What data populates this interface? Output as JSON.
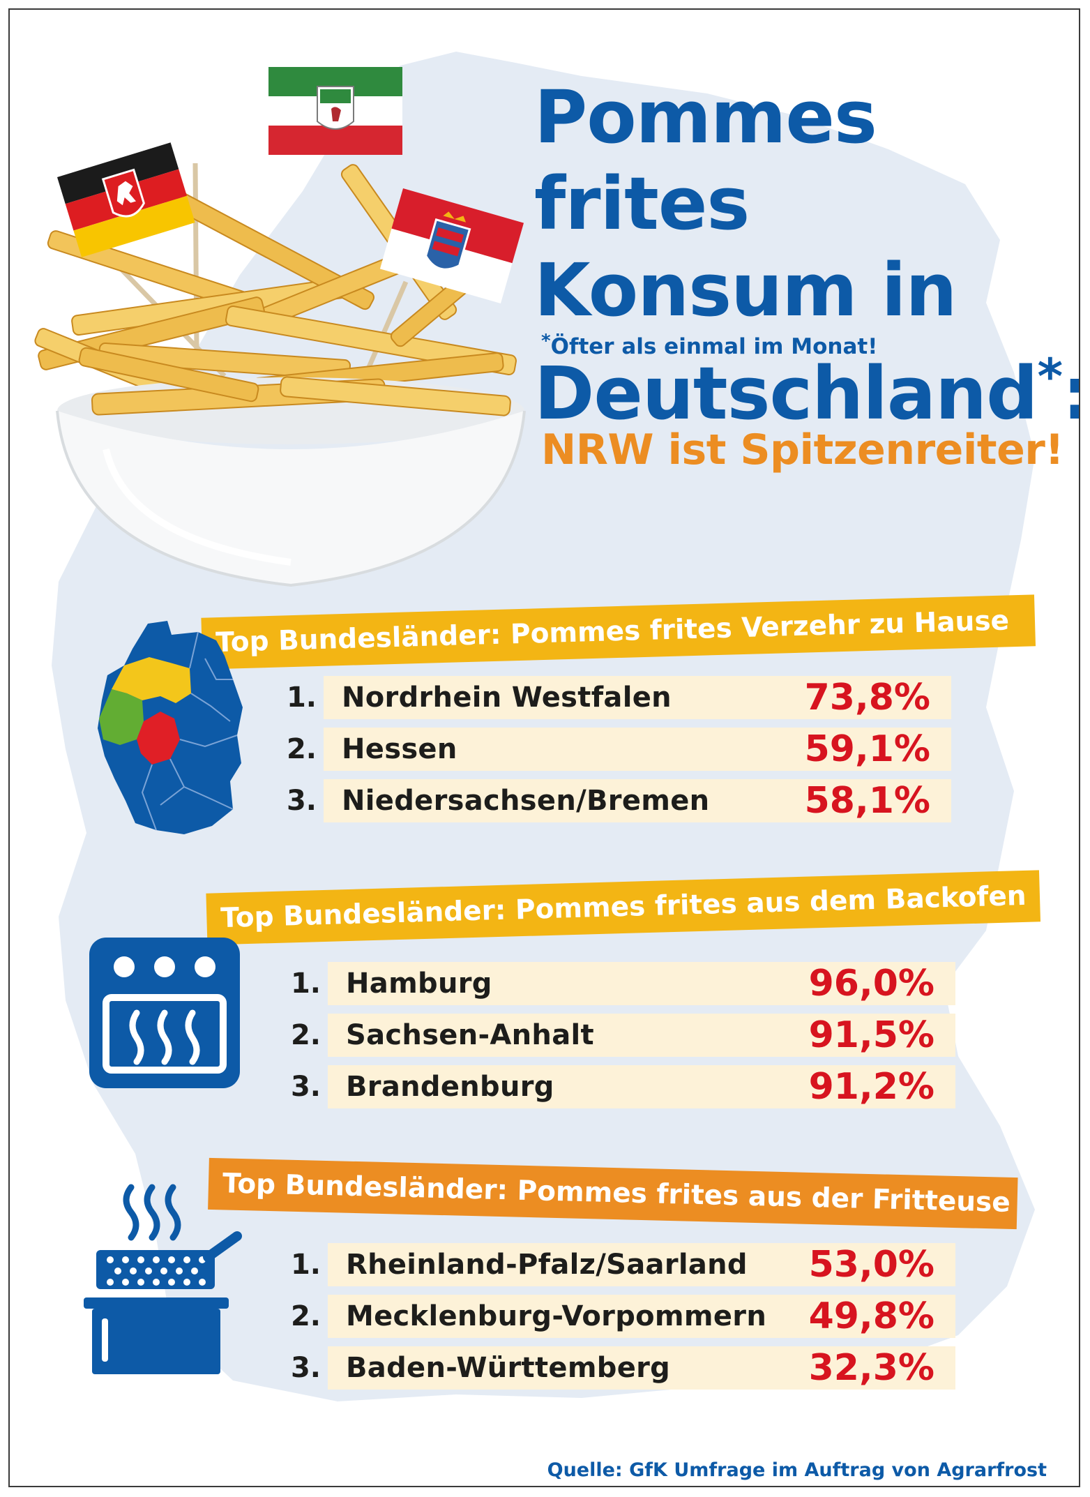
{
  "title": {
    "line1": "Pommes frites",
    "line2": "Konsum in",
    "line3": "Deutschland",
    "asterisk": "*",
    "colon": ":"
  },
  "footnote": {
    "asterisk": "*",
    "text": "Öfter als einmal im Monat!"
  },
  "headline": "NRW ist Spitzenreiter!",
  "source": "Quelle: GfK Umfrage im Auftrag von Agrarfrost",
  "colors": {
    "brand_blue": "#0d5aa7",
    "accent_orange": "#ec8d22",
    "banner_yellow": "#f3b514",
    "value_red": "#d7141f",
    "row_bg": "#fdf2d8",
    "map_bg": "#e4ebf4"
  },
  "icons": [
    "germany-map-icon",
    "oven-icon",
    "fryer-pot-icon"
  ],
  "chart_data": [
    {
      "type": "table",
      "title": "Top Bundesländer: Pommes frites Verzehr zu Hause",
      "unit": "%",
      "rows": [
        {
          "rank": "1.",
          "name": "Nordrhein Westfalen",
          "value": 73.8,
          "label": "73,8%"
        },
        {
          "rank": "2.",
          "name": "Hessen",
          "value": 59.1,
          "label": "59,1%"
        },
        {
          "rank": "3.",
          "name": "Niedersachsen/Bremen",
          "value": 58.1,
          "label": "58,1%"
        }
      ]
    },
    {
      "type": "table",
      "title": "Top Bundesländer: Pommes frites aus dem Backofen",
      "unit": "%",
      "rows": [
        {
          "rank": "1.",
          "name": "Hamburg",
          "value": 96.0,
          "label": "96,0%"
        },
        {
          "rank": "2.",
          "name": "Sachsen-Anhalt",
          "value": 91.5,
          "label": "91,5%"
        },
        {
          "rank": "3.",
          "name": "Brandenburg",
          "value": 91.2,
          "label": "91,2%"
        }
      ]
    },
    {
      "type": "table",
      "title": "Top Bundesländer: Pommes frites aus der Fritteuse",
      "unit": "%",
      "rows": [
        {
          "rank": "1.",
          "name": "Rheinland-Pfalz/Saarland",
          "value": 53.0,
          "label": "53,0%"
        },
        {
          "rank": "2.",
          "name": "Mecklenburg-Vorpommern",
          "value": 49.8,
          "label": "49,8%"
        },
        {
          "rank": "3.",
          "name": "Baden-Württemberg",
          "value": 32.3,
          "label": "32,3%"
        }
      ]
    }
  ]
}
